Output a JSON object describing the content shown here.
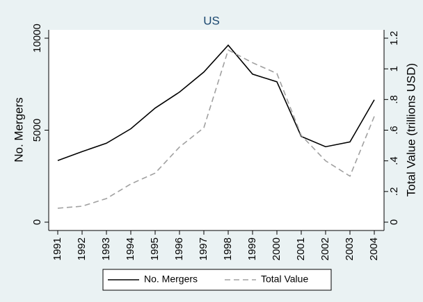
{
  "chart_data": {
    "type": "line",
    "title": "US",
    "categories": [
      "1991",
      "1992",
      "1993",
      "1994",
      "1995",
      "1996",
      "1997",
      "1998",
      "1999",
      "2000",
      "2001",
      "2002",
      "2003",
      "2004"
    ],
    "y_label": "No. Mergers",
    "y2_label": "Total Value (trillions USD)",
    "ylim": [
      0,
      10000
    ],
    "yticks": [
      0,
      5000,
      10000
    ],
    "y2lim": [
      0,
      1.2
    ],
    "y2ticks": [
      0,
      {
        "value": 0.2,
        "label": ".2"
      },
      {
        "value": 0.4,
        "label": ".4"
      },
      {
        "value": 0.6,
        "label": ".6"
      },
      {
        "value": 0.8,
        "label": ".8"
      },
      1,
      1.2
    ],
    "grid": false,
    "legend": "bottom",
    "series": [
      {
        "name": "No. Mergers",
        "color": "#000000",
        "dash": false,
        "values": [
          3350,
          3835,
          4290,
          5075,
          6200,
          7070,
          8160,
          9620,
          8045,
          7630,
          4660,
          4100,
          4360,
          6650
        ]
      },
      {
        "name": "Total Value",
        "color": "#a0a0a0",
        "dash": true,
        "axis": "y2",
        "values": [
          0.091,
          0.104,
          0.154,
          0.249,
          0.32,
          0.49,
          0.616,
          1.123,
          1.04,
          0.97,
          0.566,
          0.4,
          0.3,
          0.69
        ]
      }
    ]
  }
}
